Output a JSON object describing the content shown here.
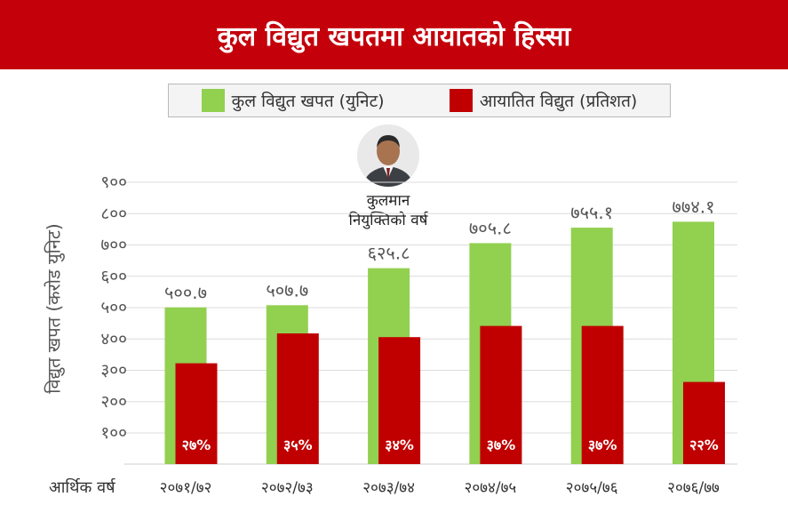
{
  "header": {
    "title": "कुल विद्युत खपतमा आयातको हिस्सा"
  },
  "legend": {
    "items": [
      {
        "label": "कुल विद्युत खपत (युनिट)",
        "color": "#92d050"
      },
      {
        "label": "आयातित विद्युत (प्रतिशत)",
        "color": "#c00000"
      }
    ]
  },
  "annotation": {
    "line1": "कुलमान",
    "line2": "नियुक्तिको वर्ष"
  },
  "chart_data": {
    "type": "bar",
    "ylabel": "विद्युत खपत (करोड युनिट)",
    "x_axis_title": "आर्थिक वर्ष",
    "categories": [
      "२०७१/७२",
      "२०७२/७३",
      "२०७३/७४",
      "२०७४/७५",
      "२०७५/७६",
      "२०७६/७७"
    ],
    "ylim": [
      100,
      900
    ],
    "yticks": [
      "९००",
      "८००",
      "७००",
      "६००",
      "५००",
      "४००",
      "३००",
      "२००",
      "१००"
    ],
    "grid": true,
    "series": [
      {
        "name": "कुल विद्युत खपत (युनिट)",
        "values": [
          500.7,
          507.7,
          625.8,
          705.8,
          755.1,
          774.1
        ],
        "labels": [
          "५००.७",
          "५०७.७",
          "६२५.८",
          "७०५.८",
          "७५५.१",
          "७७४.१"
        ],
        "color": "#92d050"
      },
      {
        "name": "आयातित विद्युत (प्रतिशत)",
        "values": [
          27,
          35,
          34,
          37,
          37,
          22
        ],
        "labels": [
          "२७%",
          "३५%",
          "३४%",
          "३७%",
          "३७%",
          "२२%"
        ],
        "color": "#c00000"
      }
    ]
  }
}
